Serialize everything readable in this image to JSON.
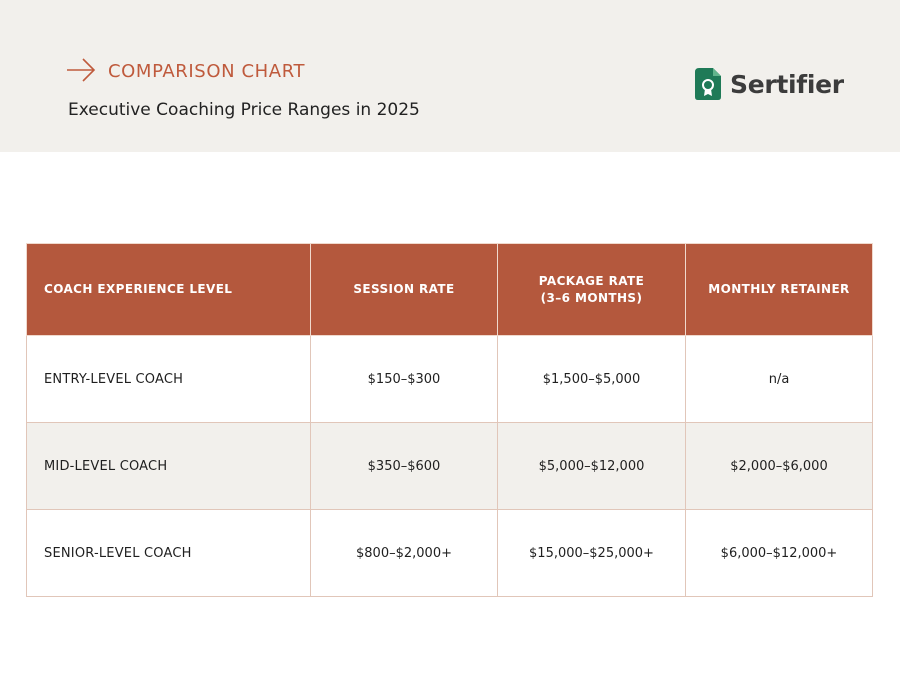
{
  "header": {
    "eyebrow": "COMPARISON CHART",
    "subtitle": "Executive Coaching Price Ranges in 2025",
    "logo_text": "Sertifier",
    "icons": {
      "eyebrow_icon": "arrow-right-icon",
      "logo_icon": "certificate-badge-icon"
    }
  },
  "colors": {
    "accent": "#bf5a3c",
    "table_header_bg": "#b4583d",
    "logo_green": "#1f7a57",
    "header_bg": "#f2f0ec"
  },
  "table": {
    "columns": [
      [
        "COACH EXPERIENCE LEVEL"
      ],
      [
        "SESSION RATE"
      ],
      [
        "PACKAGE RATE",
        "(3–6 MONTHS)"
      ],
      [
        "MONTHLY RETAINER"
      ]
    ],
    "rows": [
      [
        "ENTRY-LEVEL COACH",
        "$150–$300",
        "$1,500–$5,000",
        "n/a"
      ],
      [
        "MID-LEVEL COACH",
        "$350–$600",
        "$5,000–$12,000",
        "$2,000–$6,000"
      ],
      [
        "SENIOR-LEVEL COACH",
        "$800–$2,000+",
        "$15,000–$25,000+",
        "$6,000–$12,000+"
      ]
    ]
  }
}
